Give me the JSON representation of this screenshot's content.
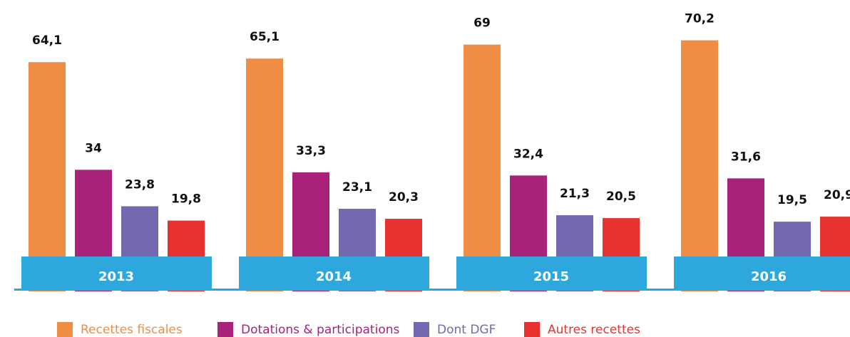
{
  "chart_data": {
    "type": "bar",
    "categories": [
      "2013",
      "2014",
      "2015",
      "2016"
    ],
    "series": [
      {
        "name": "Recettes fiscales",
        "color": "#ef8d45",
        "values": [
          64.1,
          65.1,
          69,
          70.2
        ],
        "value_labels": [
          "64,1",
          "65,1",
          "69",
          "70,2"
        ]
      },
      {
        "name": "Dotations & participations",
        "color": "#a8217b",
        "values": [
          34,
          33.3,
          32.4,
          31.6
        ],
        "value_labels": [
          "34",
          "33,3",
          "32,4",
          "31,6"
        ]
      },
      {
        "name": "Dont DGF",
        "color": "#7469b0",
        "values": [
          23.8,
          23.1,
          21.3,
          19.5
        ],
        "value_labels": [
          "23,8",
          "23,1",
          "21,3",
          "19,5"
        ]
      },
      {
        "name": "Autres recettes",
        "color": "#e8322f",
        "values": [
          19.8,
          20.3,
          20.5,
          20.9
        ],
        "value_labels": [
          "19,8",
          "20,3",
          "20,5",
          "20,9"
        ]
      }
    ],
    "band_color": "#2ea8dc"
  }
}
